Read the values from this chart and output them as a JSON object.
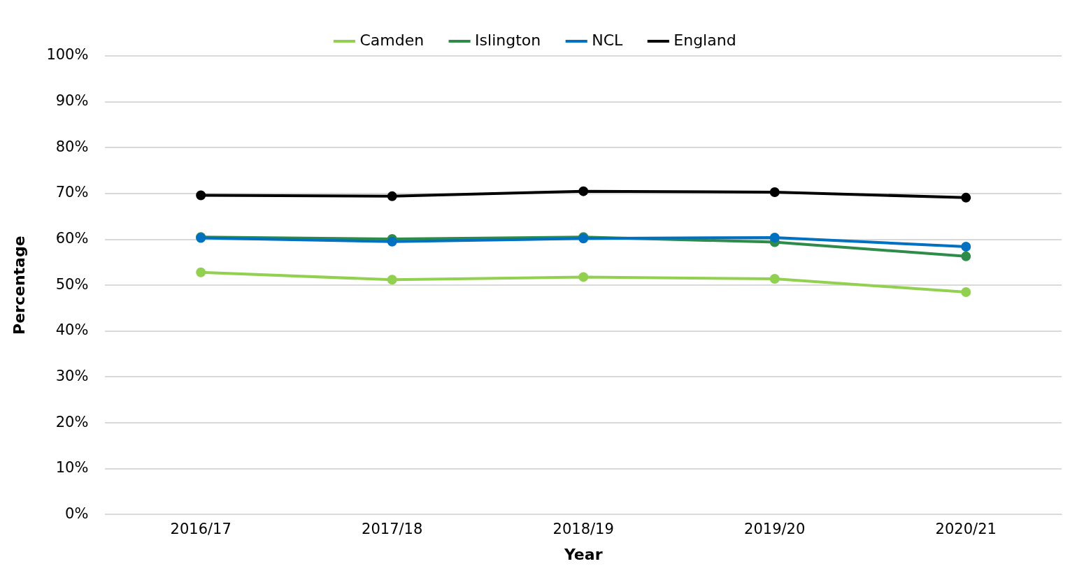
{
  "chart_data": {
    "type": "line",
    "xlabel": "Year",
    "ylabel": "Percentage",
    "categories": [
      "2016/17",
      "2017/18",
      "2018/19",
      "2019/20",
      "2020/21"
    ],
    "series": [
      {
        "name": "Camden",
        "color": "#92d050",
        "values": [
          52.8,
          51.2,
          51.8,
          51.4,
          48.5
        ]
      },
      {
        "name": "Islington",
        "color": "#2e8b4a",
        "values": [
          60.5,
          60.1,
          60.5,
          59.4,
          56.3
        ]
      },
      {
        "name": "NCL",
        "color": "#0070c0",
        "values": [
          60.3,
          59.5,
          60.2,
          60.4,
          58.4
        ]
      },
      {
        "name": "England",
        "color": "#000000",
        "values": [
          69.6,
          69.4,
          70.5,
          70.3,
          69.1
        ]
      }
    ],
    "ylim": [
      0,
      100
    ],
    "yticks": [
      {
        "value": 0,
        "label": "0%"
      },
      {
        "value": 10,
        "label": "10%"
      },
      {
        "value": 20,
        "label": "20%"
      },
      {
        "value": 30,
        "label": "30%"
      },
      {
        "value": 40,
        "label": "40%"
      },
      {
        "value": 50,
        "label": "50%"
      },
      {
        "value": 60,
        "label": "60%"
      },
      {
        "value": 70,
        "label": "70%"
      },
      {
        "value": 80,
        "label": "80%"
      },
      {
        "value": 90,
        "label": "90%"
      },
      {
        "value": 100,
        "label": "100%"
      }
    ],
    "grid": "y",
    "legend": "top",
    "marker": "circle",
    "line_style": "solid"
  }
}
